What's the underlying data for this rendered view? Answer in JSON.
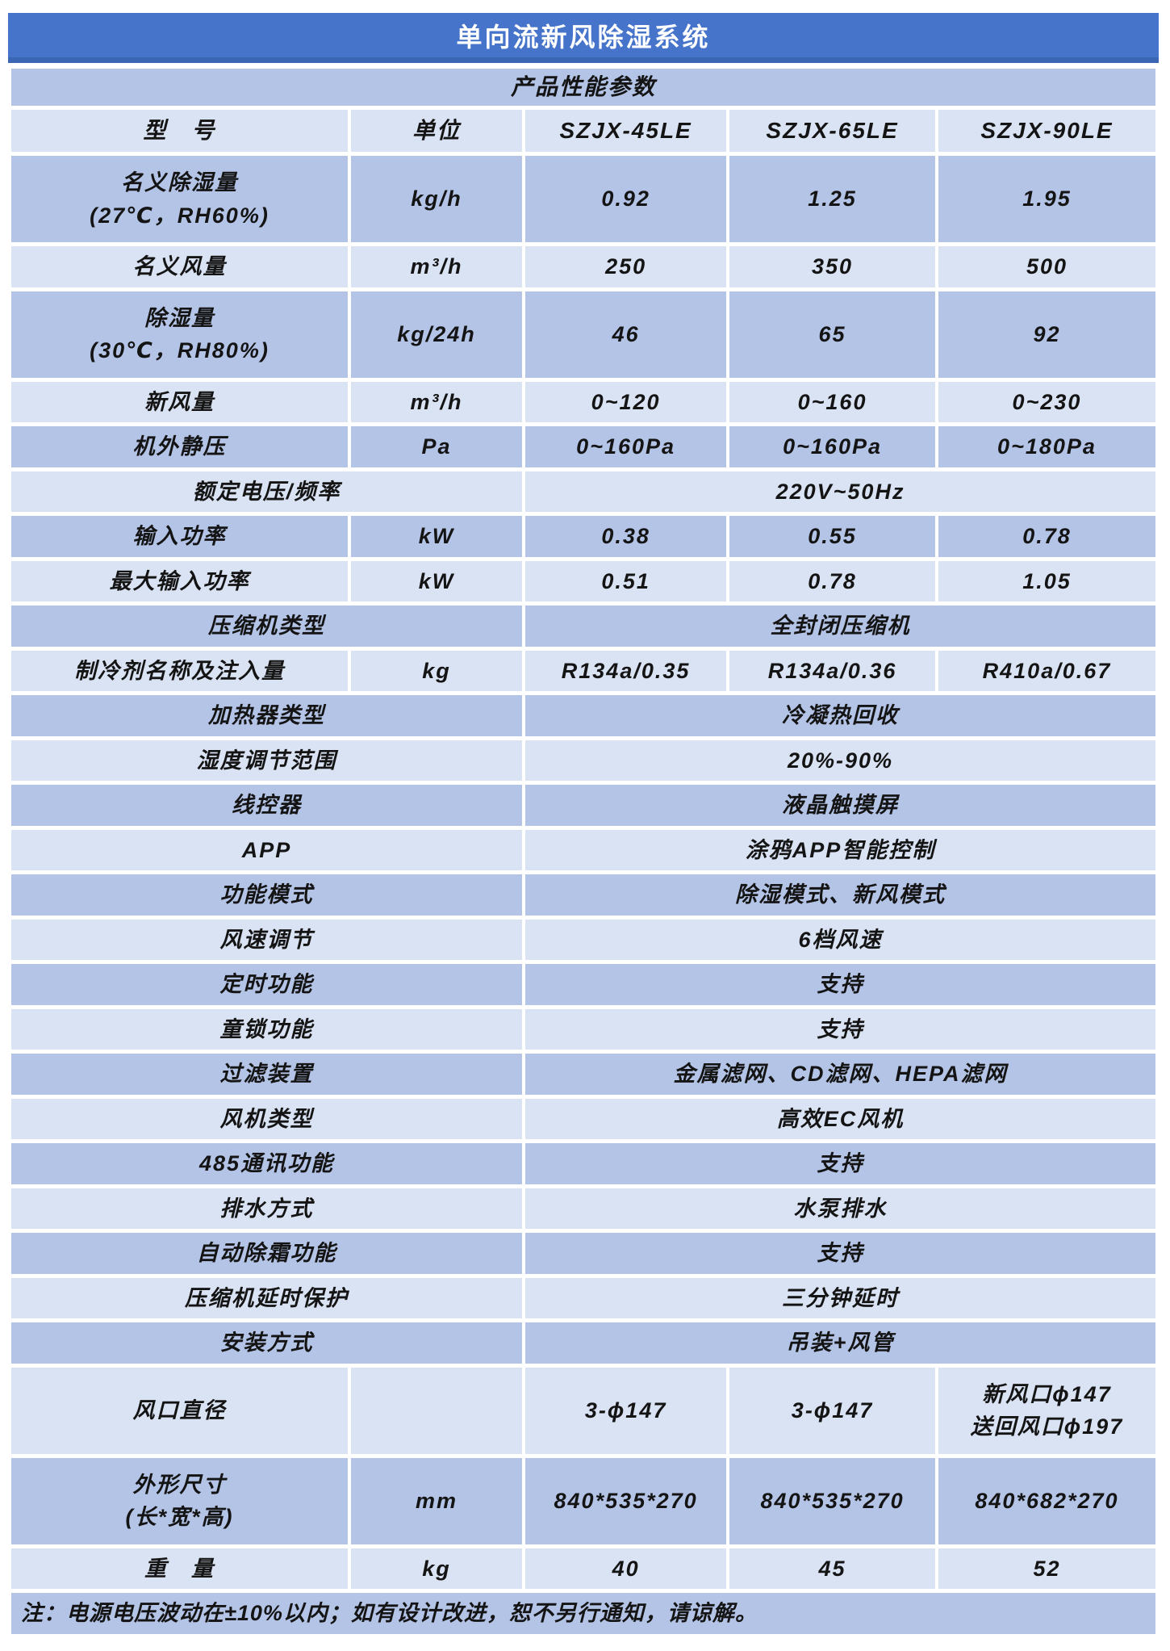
{
  "title": "单向流新风除湿系统",
  "subheader": "产品性能参数",
  "columns": {
    "model_label": "型　号",
    "unit_label": "单位",
    "models": [
      "SZJX-45LE",
      "SZJX-65LE",
      "SZJX-90LE"
    ]
  },
  "rows": [
    {
      "label": "名义除湿量\n(27℃，RH60%)",
      "unit": "kg/h",
      "values": [
        "0.92",
        "1.25",
        "1.95"
      ]
    },
    {
      "label": "名义风量",
      "unit": "m³/h",
      "values": [
        "250",
        "350",
        "500"
      ]
    },
    {
      "label": "除湿量\n(30℃，RH80%)",
      "unit": "kg/24h",
      "values": [
        "46",
        "65",
        "92"
      ]
    },
    {
      "label": "新风量",
      "unit": "m³/h",
      "values": [
        "0~120",
        "0~160",
        "0~230"
      ]
    },
    {
      "label": "机外静压",
      "unit": "Pa",
      "values": [
        "0~160Pa",
        "0~160Pa",
        "0~180Pa"
      ]
    },
    {
      "label": "额定电压/频率",
      "merged": "220V~50Hz"
    },
    {
      "label": "输入功率",
      "unit": "kW",
      "values": [
        "0.38",
        "0.55",
        "0.78"
      ]
    },
    {
      "label": "最大输入功率",
      "unit": "kW",
      "values": [
        "0.51",
        "0.78",
        "1.05"
      ]
    },
    {
      "label": "压缩机类型",
      "merged": "全封闭压缩机"
    },
    {
      "label": "制冷剂名称及注入量",
      "unit": "kg",
      "values": [
        "R134a/0.35",
        "R134a/0.36",
        "R410a/0.67"
      ]
    },
    {
      "label": "加热器类型",
      "merged": "冷凝热回收"
    },
    {
      "label": "湿度调节范围",
      "merged": "20%-90%"
    },
    {
      "label": "线控器",
      "merged": "液晶触摸屏"
    },
    {
      "label": "APP",
      "merged": "涂鸦APP智能控制"
    },
    {
      "label": "功能模式",
      "merged": "除湿模式、新风模式"
    },
    {
      "label": "风速调节",
      "merged": "6档风速"
    },
    {
      "label": "定时功能",
      "merged": "支持"
    },
    {
      "label": "童锁功能",
      "merged": "支持"
    },
    {
      "label": "过滤装置",
      "merged": "金属滤网、CD滤网、HEPA滤网"
    },
    {
      "label": "风机类型",
      "merged": "高效EC风机"
    },
    {
      "label": "485通讯功能",
      "merged": "支持"
    },
    {
      "label": "排水方式",
      "merged": "水泵排水"
    },
    {
      "label": "自动除霜功能",
      "merged": "支持"
    },
    {
      "label": "压缩机延时保护",
      "merged": "三分钟延时"
    },
    {
      "label": "安装方式",
      "merged": "吊装+风管"
    },
    {
      "label": "风口直径",
      "unit": "",
      "values": [
        "3-ϕ147",
        "3-ϕ147",
        "新风口ϕ147\n送回风口ϕ197"
      ]
    },
    {
      "label": "外形尺寸\n(长*宽*高)",
      "unit": "mm",
      "values": [
        "840*535*270",
        "840*535*270",
        "840*682*270"
      ]
    },
    {
      "label": "重　量",
      "unit": "kg",
      "values": [
        "40",
        "45",
        "52"
      ]
    }
  ],
  "note": "注：电源电压波动在±10%以内；如有设计改进，恕不另行通知，请谅解。",
  "colors": {
    "header_bg": "#4674CA",
    "header_edge": "#3B66B4",
    "row_dark": "#B4C4E7",
    "row_light": "#DAE3F3",
    "title_text": "#FFFFFF",
    "text": "#141414"
  }
}
